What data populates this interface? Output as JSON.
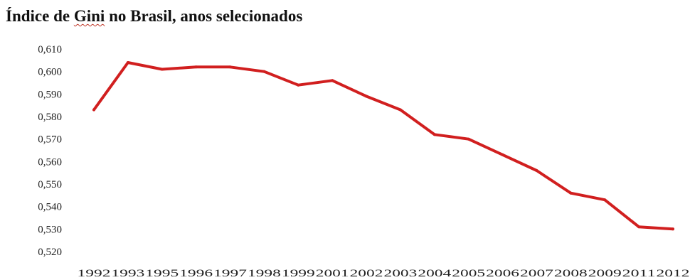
{
  "chart_data": {
    "type": "line",
    "title": {
      "before": "Índice de ",
      "underlined": "Gini",
      "after": " no Brasil, anos selecionados"
    },
    "xlabel": "",
    "ylabel": "",
    "categories": [
      "1992",
      "1993",
      "1995",
      "1996",
      "1997",
      "1998",
      "1999",
      "2001",
      "2002",
      "2003",
      "2004",
      "2005",
      "2006",
      "2007",
      "2008",
      "2009",
      "2011",
      "2012"
    ],
    "series": [
      {
        "values": [
          0.583,
          0.604,
          0.601,
          0.602,
          0.602,
          0.6,
          0.594,
          0.596,
          0.589,
          0.583,
          0.572,
          0.57,
          0.563,
          0.556,
          0.546,
          0.543,
          0.531,
          0.53
        ],
        "color": "#d11f1f"
      }
    ],
    "yticks": [
      "0,520",
      "0,530",
      "0,540",
      "0,550",
      "0,560",
      "0,570",
      "0,580",
      "0,590",
      "0,600",
      "0,610"
    ],
    "ylim": [
      0.52,
      0.61
    ],
    "grid": false,
    "legend": "none"
  }
}
